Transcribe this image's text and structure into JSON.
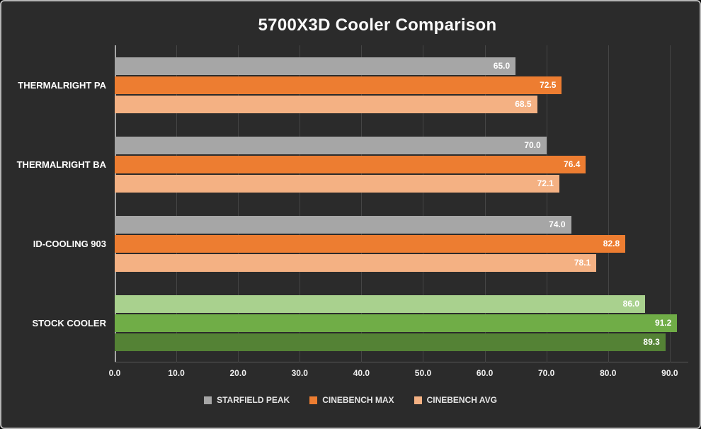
{
  "colors": {
    "background": "#2b2b2b",
    "frame_border": "#b5b5b5",
    "gridline": "#454545",
    "axis": "#a6a6a6",
    "text": "#ffffff"
  },
  "chart_data": {
    "type": "bar",
    "orientation": "horizontal",
    "title": "5700X3D Cooler Comparison",
    "categories": [
      "THERMALRIGHT PA",
      "THERMALRIGHT BA",
      "ID-COOLING 903",
      "STOCK COOLER"
    ],
    "series": [
      {
        "name": "STARFIELD PEAK",
        "color": "#a6a6a6",
        "values": [
          65.0,
          70.0,
          74.0,
          86.0
        ]
      },
      {
        "name": "CINEBENCH MAX",
        "color": "#ed7d31",
        "values": [
          72.5,
          76.4,
          82.8,
          91.2
        ]
      },
      {
        "name": "CINEBENCH AVG",
        "color": "#f4b183",
        "values": [
          68.5,
          72.1,
          78.1,
          89.3
        ]
      }
    ],
    "color_overrides": {
      "STOCK COOLER": [
        "#a9d18e",
        "#70ad47",
        "#548235"
      ]
    },
    "xlim": [
      0,
      93
    ],
    "xticks": [
      0,
      10,
      20,
      30,
      40,
      50,
      60,
      70,
      80,
      90
    ],
    "tick_decimals": 1,
    "value_label_decimals": 1,
    "grid": true,
    "legend_position": "bottom"
  }
}
